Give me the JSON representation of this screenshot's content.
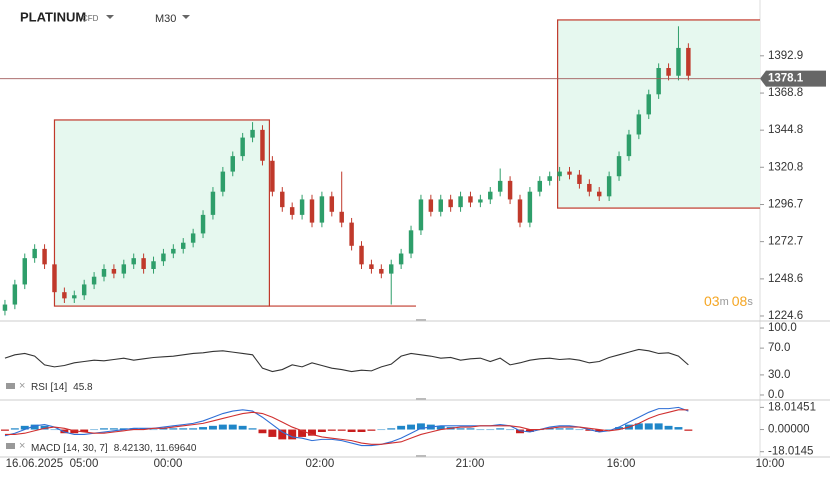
{
  "header": {
    "symbol": "PLATINUM",
    "badge": "CFD",
    "timeframe": "M30"
  },
  "countdown": {
    "min": "03",
    "min_unit": "m",
    "sec": "08",
    "sec_unit": "s"
  },
  "chart_data": [
    {
      "type": "candlestick",
      "up_color": "#2e9e6a",
      "down_color": "#c0392b",
      "open": [
        1228,
        1232,
        1245,
        1262,
        1268,
        1258,
        1240,
        1236,
        1238,
        1245,
        1250,
        1255,
        1252,
        1258,
        1262,
        1255,
        1260,
        1265,
        1268,
        1272,
        1278,
        1290,
        1305,
        1318,
        1328,
        1340,
        1345,
        1325,
        1305,
        1295,
        1290,
        1300,
        1285,
        1302,
        1292,
        1285,
        1270,
        1258,
        1255,
        1252,
        1258,
        1265,
        1280,
        1300,
        1292,
        1300,
        1295,
        1302,
        1298,
        1300,
        1305,
        1312,
        1300,
        1285,
        1305,
        1312,
        1315,
        1318,
        1316,
        1310,
        1305,
        1302,
        1315,
        1328,
        1342,
        1355,
        1368,
        1385,
        1380,
        1398
      ],
      "high": [
        1235,
        1248,
        1265,
        1271,
        1271,
        1261,
        1243,
        1241,
        1248,
        1253,
        1258,
        1258,
        1261,
        1265,
        1265,
        1263,
        1268,
        1271,
        1275,
        1281,
        1293,
        1308,
        1321,
        1331,
        1343,
        1350,
        1348,
        1328,
        1308,
        1298,
        1303,
        1303,
        1305,
        1305,
        1318,
        1288,
        1273,
        1261,
        1258,
        1261,
        1268,
        1283,
        1303,
        1303,
        1303,
        1303,
        1305,
        1305,
        1303,
        1308,
        1320,
        1315,
        1303,
        1308,
        1315,
        1318,
        1321,
        1321,
        1319,
        1313,
        1308,
        1318,
        1331,
        1345,
        1358,
        1371,
        1388,
        1388,
        1412,
        1401
      ],
      "low": [
        1225,
        1229,
        1242,
        1259,
        1255,
        1237,
        1233,
        1233,
        1235,
        1242,
        1247,
        1249,
        1249,
        1255,
        1252,
        1252,
        1257,
        1262,
        1265,
        1269,
        1275,
        1287,
        1302,
        1315,
        1325,
        1337,
        1322,
        1302,
        1292,
        1287,
        1287,
        1282,
        1282,
        1289,
        1282,
        1267,
        1255,
        1252,
        1249,
        1232,
        1255,
        1262,
        1277,
        1289,
        1289,
        1292,
        1292,
        1295,
        1295,
        1297,
        1302,
        1297,
        1282,
        1282,
        1302,
        1309,
        1312,
        1313,
        1307,
        1302,
        1299,
        1299,
        1312,
        1325,
        1339,
        1352,
        1365,
        1377,
        1377,
        1377
      ],
      "close": [
        1232,
        1245,
        1262,
        1268,
        1258,
        1240,
        1236,
        1238,
        1245,
        1250,
        1255,
        1252,
        1258,
        1262,
        1255,
        1260,
        1265,
        1268,
        1272,
        1278,
        1290,
        1305,
        1318,
        1328,
        1340,
        1345,
        1325,
        1305,
        1295,
        1290,
        1300,
        1285,
        1302,
        1292,
        1285,
        1270,
        1258,
        1255,
        1252,
        1258,
        1265,
        1280,
        1300,
        1292,
        1300,
        1295,
        1302,
        1298,
        1300,
        1305,
        1312,
        1300,
        1285,
        1305,
        1312,
        1315,
        1318,
        1316,
        1310,
        1305,
        1302,
        1315,
        1328,
        1342,
        1355,
        1368,
        1385,
        1380,
        1398,
        1380
      ],
      "xlim": [
        -0.5,
        83.3
      ],
      "ylim": [
        1222,
        1429
      ],
      "yticks": [
        1224.6,
        1248.6,
        1272.7,
        1296.7,
        1320.8,
        1344.8,
        1368.8,
        1392.9
      ],
      "last_price": 1378.1,
      "annotations": [
        {
          "x": [
            5.0,
            26.7
          ],
          "y": [
            1231.0,
            1351.4
          ]
        },
        {
          "x": [
            55.8,
            76.3
          ],
          "y": [
            1294.4,
            1416.1
          ]
        }
      ],
      "level_line": {
        "x": [
          26.7,
          41.5
        ],
        "y": 1231.0
      },
      "box_fill": "#e6f8ef",
      "box_stroke": "#c0392b"
    },
    {
      "type": "line",
      "label": "RSI [14]",
      "last": 45.8,
      "color": "#333333",
      "values": [
        55,
        60,
        62,
        58,
        45,
        42,
        44,
        48,
        50,
        52,
        51,
        53,
        55,
        52,
        54,
        56,
        57,
        58,
        60,
        62,
        63,
        65,
        66,
        64,
        62,
        60,
        40,
        35,
        38,
        45,
        42,
        48,
        44,
        40,
        38,
        35,
        37,
        36,
        42,
        46,
        58,
        62,
        60,
        58,
        55,
        56,
        52,
        54,
        55,
        50,
        55,
        45,
        48,
        52,
        54,
        55,
        53,
        54,
        52,
        48,
        50,
        56,
        60,
        64,
        68,
        66,
        62,
        63,
        58,
        45
      ],
      "xlim": [
        -0.5,
        83.3
      ],
      "ylim": [
        -6,
        109
      ],
      "yticks": [
        {
          "value": 100,
          "label": "100.0"
        },
        {
          "value": 70,
          "label": "70.0"
        },
        {
          "value": 30,
          "label": "30.0"
        },
        {
          "value": 0,
          "label": "0.0"
        }
      ]
    },
    {
      "type": "macd",
      "label": "MACD [14, 30, 7]",
      "values_label": "8.42130, 11.69640",
      "series": [
        {
          "name": "MACD",
          "color": "#2f6fd6",
          "values": [
            -5,
            -3,
            0,
            3,
            4,
            2,
            -2,
            -4,
            -4,
            -3,
            -2,
            -1,
            0,
            1,
            1,
            1,
            2,
            3,
            4,
            5,
            7,
            10,
            13,
            15,
            16,
            15,
            10,
            4,
            -2,
            -6,
            -7,
            -9,
            -8,
            -8,
            -9,
            -11,
            -13,
            -13,
            -12,
            -10,
            -7,
            -3,
            1,
            2,
            3,
            3,
            3,
            3,
            3,
            3,
            4,
            3,
            -1,
            -2,
            0,
            2,
            3,
            3,
            2,
            0,
            -2,
            -1,
            2,
            6,
            10,
            14,
            17,
            17,
            18,
            15
          ]
        },
        {
          "name": "Signal",
          "color": "#d03030",
          "values": [
            -4,
            -4,
            -3,
            -1,
            1,
            2,
            1,
            -1,
            -2,
            -3,
            -3,
            -2,
            -1,
            0,
            0,
            1,
            1,
            2,
            3,
            4,
            5,
            7,
            9,
            11,
            13,
            14,
            13,
            10,
            6,
            2,
            -1,
            -4,
            -6,
            -7,
            -8,
            -9,
            -11,
            -12,
            -12,
            -11,
            -10,
            -7,
            -4,
            -2,
            0,
            1,
            2,
            2,
            3,
            3,
            3,
            3,
            2,
            0,
            0,
            1,
            2,
            2,
            2,
            1,
            0,
            -1,
            0,
            2,
            5,
            9,
            12,
            14,
            16,
            16
          ]
        }
      ],
      "histogram": {
        "pos_color": "#1f86c8",
        "neg_color": "#c81e1e",
        "values": [
          -1,
          1,
          3,
          4,
          3,
          0,
          -3,
          -3,
          -2,
          0,
          1,
          1,
          1,
          1,
          1,
          0,
          1,
          1,
          1,
          1,
          2,
          3,
          4,
          4,
          3,
          1,
          -3,
          -6,
          -8,
          -8,
          -6,
          -5,
          -2,
          -1,
          -1,
          -2,
          -2,
          -1,
          0,
          1,
          3,
          4,
          5,
          4,
          3,
          2,
          1,
          1,
          0,
          0,
          1,
          0,
          -3,
          -2,
          0,
          1,
          1,
          1,
          0,
          -1,
          -2,
          0,
          2,
          4,
          5,
          5,
          5,
          3,
          2,
          -1
        ]
      },
      "xlim": [
        -0.5,
        83.3
      ],
      "ylim": [
        -21.5,
        24
      ],
      "yticks": [
        18.01451,
        {
          "value": 0,
          "label": "0.00000"
        },
        -18.0145
      ],
      "xticks": [
        {
          "value": 4.75,
          "label": "16.06.2025  05:00"
        },
        {
          "value": 16.46,
          "label": "00:00"
        },
        {
          "value": 31.8,
          "label": "02:00"
        },
        {
          "value": 46.95,
          "label": "21:00"
        },
        {
          "value": 62.2,
          "label": "16:00"
        },
        {
          "value": 77.24,
          "label": "10:00"
        }
      ]
    }
  ]
}
